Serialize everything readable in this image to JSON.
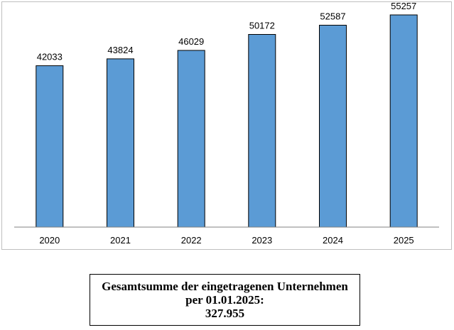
{
  "chart_data": {
    "type": "bar",
    "categories": [
      "2020",
      "2021",
      "2022",
      "2023",
      "2024",
      "2025"
    ],
    "values": [
      42033,
      43824,
      46029,
      50172,
      52587,
      55257
    ],
    "data_labels": [
      "42033",
      "43824",
      "46029",
      "50172",
      "52587",
      "55257"
    ],
    "title": "",
    "xlabel": "",
    "ylabel": "",
    "ylim": [
      0,
      56000
    ],
    "grid": false,
    "legend": "none",
    "colors": {
      "bar_fill": "#5b9bd5",
      "bar_stroke": "#000000",
      "axis": "#808080"
    }
  },
  "summary": {
    "line1": "Gesamtsumme der eingetragenen Unternehmen",
    "line2": "per 01.01.2025:",
    "line3": "327.955"
  }
}
